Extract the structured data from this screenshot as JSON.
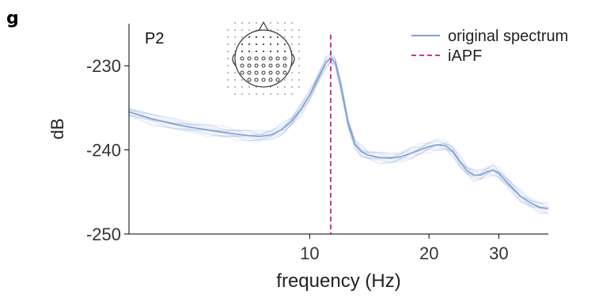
{
  "panel_label": "g",
  "chart_data": {
    "type": "line",
    "title": "",
    "xlabel": "frequency (Hz)",
    "ylabel": "dB",
    "x_scale": "log",
    "xlim": [
      3.5,
      40
    ],
    "ylim": [
      -250,
      -225
    ],
    "xticks": [
      10,
      20,
      30
    ],
    "xtick_labels": [
      "10",
      "20",
      "30"
    ],
    "yticks": [
      -250,
      -240,
      -230
    ],
    "ytick_labels": [
      "-250",
      "-240",
      "-230"
    ],
    "grid": false,
    "legend_position": "top-right",
    "inset_label": "P2",
    "inset_image": "eeg-electrode-scalp-map-icon",
    "colors": {
      "spectrum": "#7f9fd6",
      "iapf": "#cc3399"
    },
    "series": [
      {
        "name": "original spectrum",
        "style": "solid",
        "x": [
          3.5,
          4,
          4.5,
          5,
          5.5,
          6,
          6.5,
          7,
          7.5,
          8,
          8.5,
          9,
          9.5,
          10,
          10.5,
          11,
          11.3,
          11.6,
          12,
          12.5,
          13,
          13.5,
          14,
          15,
          16,
          17,
          18,
          19,
          20,
          21,
          22,
          23,
          24,
          25,
          26,
          27,
          28,
          29,
          30,
          32,
          34,
          36,
          38,
          40
        ],
        "y": [
          -235.5,
          -236.3,
          -236.9,
          -237.3,
          -237.6,
          -237.9,
          -238.1,
          -238.3,
          -238.4,
          -238.2,
          -237.6,
          -236.6,
          -235.2,
          -233.5,
          -231.5,
          -229.6,
          -229.1,
          -229.6,
          -232.5,
          -236.8,
          -239.3,
          -240.2,
          -240.6,
          -240.9,
          -241.0,
          -240.8,
          -240.4,
          -240.0,
          -239.6,
          -239.4,
          -239.5,
          -240.2,
          -241.5,
          -242.5,
          -243.0,
          -243.0,
          -242.6,
          -242.4,
          -242.8,
          -244.2,
          -245.5,
          -246.3,
          -246.8,
          -247.0
        ]
      },
      {
        "name": "iAPF",
        "style": "dashed",
        "type": "vline",
        "x_value": 11.3
      }
    ]
  }
}
